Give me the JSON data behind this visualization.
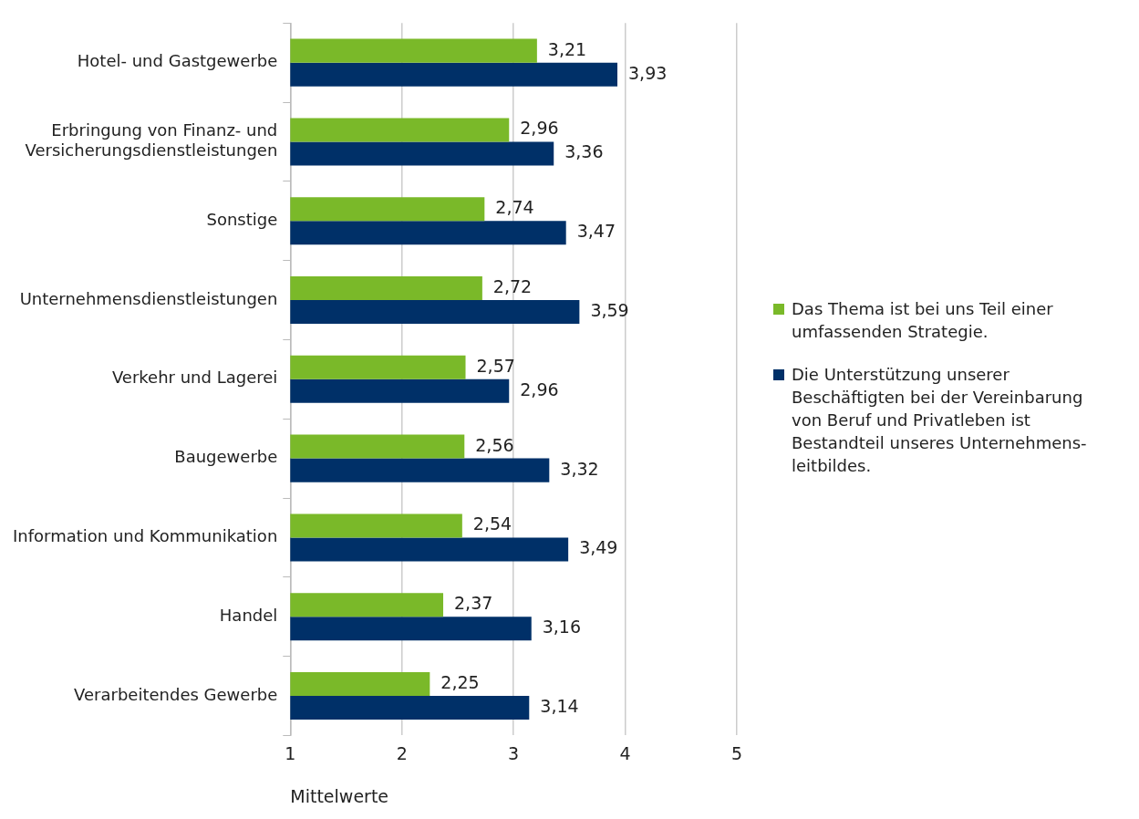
{
  "chart_data": {
    "type": "bar",
    "orientation": "horizontal",
    "xlabel": "Mittelwerte",
    "categories": [
      "Hotel- und Gastgewerbe",
      "Erbringung von Finanz- und Versicherungsdienstleistungen",
      "Sonstige",
      "Unternehmensdienstleistungen",
      "Verkehr und Lagerei",
      "Baugewerbe",
      "Information und Kommunikation",
      "Handel",
      "Verarbeitendes Gewerbe"
    ],
    "series": [
      {
        "name": "Das Thema ist bei uns Teil einer umfassenden Strategie.",
        "color": "#7ab929",
        "values": [
          3.21,
          2.96,
          2.74,
          2.72,
          2.57,
          2.56,
          2.54,
          2.37,
          2.25
        ],
        "value_labels": [
          "3,21",
          "2,96",
          "2,74",
          "2,72",
          "2,57",
          "2,56",
          "2,54",
          "2,37",
          "2,25"
        ]
      },
      {
        "name": "Die Unterstützung unserer Beschäftigten bei der Vereinbarung von Beruf und Privatleben ist Bestandteil unseres Unternehmens-leitbildes.",
        "color": "#003068",
        "values": [
          3.93,
          3.36,
          3.47,
          3.59,
          2.96,
          3.32,
          3.49,
          3.16,
          3.14
        ],
        "value_labels": [
          "3,93",
          "3,36",
          "3,47",
          "3,59",
          "2,96",
          "3,32",
          "3,49",
          "3,16",
          "3,14"
        ]
      }
    ],
    "xlim": [
      1,
      5
    ],
    "xticks": [
      1,
      2,
      3,
      4,
      5
    ],
    "grid": "x",
    "legend": "right"
  }
}
